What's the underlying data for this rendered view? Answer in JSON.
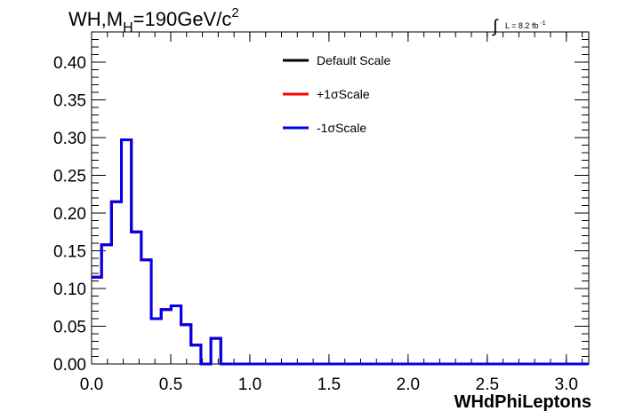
{
  "chart_data": {
    "type": "line",
    "title_main": "WH,M",
    "title_sub": "H",
    "title_rest": "=190GeV/c",
    "title_sup": "2",
    "lumi_label": "L = 8.2 fb",
    "lumi_sup": "-1",
    "xlabel": "WHdPhiLeptons",
    "ylabel": "",
    "xlim": [
      0,
      3.1416
    ],
    "ylim": [
      0,
      0.44
    ],
    "x_ticks": [
      0.0,
      0.5,
      1.0,
      1.5,
      2.0,
      2.5,
      3.0
    ],
    "x_tick_labels": [
      "0.0",
      "0.5",
      "1.0",
      "1.5",
      "2.0",
      "2.5",
      "3.0"
    ],
    "y_ticks": [
      0.0,
      0.05,
      0.1,
      0.15,
      0.2,
      0.25,
      0.3,
      0.35,
      0.4
    ],
    "y_tick_labels": [
      "0.00",
      "0.05",
      "0.10",
      "0.15",
      "0.20",
      "0.25",
      "0.30",
      "0.35",
      "0.40"
    ],
    "bin_width": 0.0628,
    "legend_position": "top-center",
    "series": [
      {
        "name": "Default Scale",
        "color": "#000000",
        "values": [
          0.115,
          0.158,
          0.215,
          0.297,
          0.175,
          0.138,
          0.06,
          0.072,
          0.077,
          0.052,
          0.025,
          0.0,
          0.034,
          0.0,
          0.0,
          0.0,
          0.0,
          0.0,
          0.0,
          0.0,
          0.0,
          0.0,
          0.0,
          0.0,
          0.0,
          0.0,
          0.0,
          0.0,
          0.0,
          0.0,
          0.0,
          0.0,
          0.0,
          0.0,
          0.0,
          0.0,
          0.0,
          0.0,
          0.0,
          0.0,
          0.0,
          0.0,
          0.0,
          0.0,
          0.0,
          0.0,
          0.0,
          0.0,
          0.0,
          0.0
        ]
      },
      {
        "name": "+1σScale",
        "color": "#ff0000",
        "values": [
          0.115,
          0.158,
          0.215,
          0.297,
          0.175,
          0.138,
          0.06,
          0.072,
          0.077,
          0.052,
          0.025,
          0.0,
          0.034,
          0.0,
          0.0,
          0.0,
          0.0,
          0.0,
          0.0,
          0.0,
          0.0,
          0.0,
          0.0,
          0.0,
          0.0,
          0.0,
          0.0,
          0.0,
          0.0,
          0.0,
          0.0,
          0.0,
          0.0,
          0.0,
          0.0,
          0.0,
          0.0,
          0.0,
          0.0,
          0.0,
          0.0,
          0.0,
          0.0,
          0.0,
          0.0,
          0.0,
          0.0,
          0.0,
          0.0,
          0.0
        ]
      },
      {
        "name": "-1σScale",
        "color": "#0000ee",
        "values": [
          0.115,
          0.158,
          0.215,
          0.297,
          0.175,
          0.138,
          0.06,
          0.072,
          0.077,
          0.052,
          0.025,
          0.0,
          0.034,
          0.0,
          0.0,
          0.0,
          0.0,
          0.0,
          0.0,
          0.0,
          0.0,
          0.0,
          0.0,
          0.0,
          0.0,
          0.0,
          0.0,
          0.0,
          0.0,
          0.0,
          0.0,
          0.0,
          0.0,
          0.0,
          0.0,
          0.0,
          0.0,
          0.0,
          0.0,
          0.0,
          0.0,
          0.0,
          0.0,
          0.0,
          0.0,
          0.0,
          0.0,
          0.0,
          0.0,
          0.0
        ]
      }
    ]
  }
}
